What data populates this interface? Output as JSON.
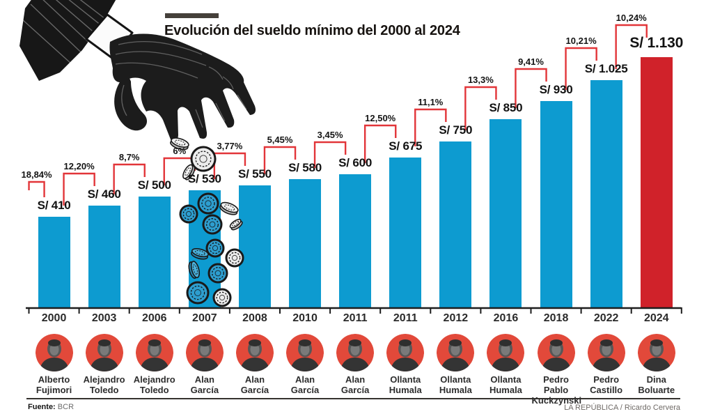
{
  "header": {
    "title": "Evolución del sueldo mínimo del 2000 al 2024"
  },
  "footer": {
    "source_label": "Fuente:",
    "source_value": "BCR",
    "credit": "LA REPÚBLICA / Ricardo Cervera"
  },
  "chart_data": {
    "type": "bar",
    "title": "Evolución del sueldo mínimo del 2000 al 2024",
    "xlabel": "",
    "ylabel": "",
    "unit": "soles (S/)",
    "categories": [
      "2000",
      "2003",
      "2006",
      "2007",
      "2008",
      "2010",
      "2011",
      "2011",
      "2012",
      "2016",
      "2018",
      "2022",
      "2024"
    ],
    "values": [
      410,
      460,
      500,
      530,
      550,
      580,
      600,
      675,
      750,
      850,
      930,
      1025,
      1130
    ],
    "value_labels": [
      "S/ 410",
      "S/ 460",
      "S/ 500",
      "S/ 530",
      "S/ 550",
      "S/ 580",
      "S/ 600",
      "S/ 675",
      "S/ 750",
      "S/ 850",
      "S/ 930",
      "S/ 1.025",
      "S/ 1.130"
    ],
    "pct_increases": [
      18.84,
      12.2,
      8.7,
      6,
      3.77,
      5.45,
      3.45,
      12.5,
      11.1,
      13.3,
      9.41,
      10.21,
      10.24
    ],
    "pct_increase_labels": [
      "18,84%",
      "12,20%",
      "8,7%",
      "6%",
      "3,77%",
      "5,45%",
      "3,45%",
      "12,50%",
      "11,1%",
      "13,3%",
      "9,41%",
      "10,21%",
      "10,24%"
    ],
    "presidents": [
      "Alberto Fujimori",
      "Alejandro Toledo",
      "Alejandro Toledo",
      "Alan García",
      "Alan García",
      "Alan García",
      "Alan García",
      "Ollanta Humala",
      "Ollanta Humala",
      "Ollanta Humala",
      "Pedro Pablo Kuckzynski",
      "Pedro Castillo",
      "Dina Boluarte"
    ],
    "highlight_index": 12,
    "ylim": [
      0,
      1130
    ],
    "grid": false,
    "legend": "none",
    "colors": {
      "bar": "#0d9bd0",
      "highlight_bar": "#d0222a",
      "bracket": "#e23539",
      "avatar_circle": "#e2493a"
    }
  }
}
